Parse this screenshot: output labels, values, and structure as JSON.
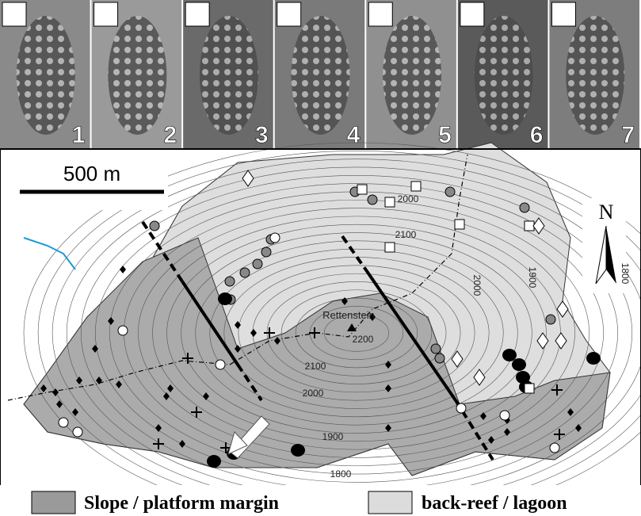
{
  "panels": [
    {
      "label": "1"
    },
    {
      "label": "2"
    },
    {
      "label": "3"
    },
    {
      "label": "4"
    },
    {
      "label": "5"
    },
    {
      "label": "6"
    },
    {
      "label": "7"
    }
  ],
  "scale_bar": "500 m",
  "north": "N",
  "peak": "Rettenstein",
  "contour_labels": [
    "2000",
    "2100",
    "2000",
    "1900",
    "1800",
    "2200",
    "2100",
    "2000",
    "1900",
    "1800"
  ],
  "legend": [
    {
      "label": "Slope / platform margin"
    },
    {
      "label": "back-reef / lagoon"
    }
  ]
}
